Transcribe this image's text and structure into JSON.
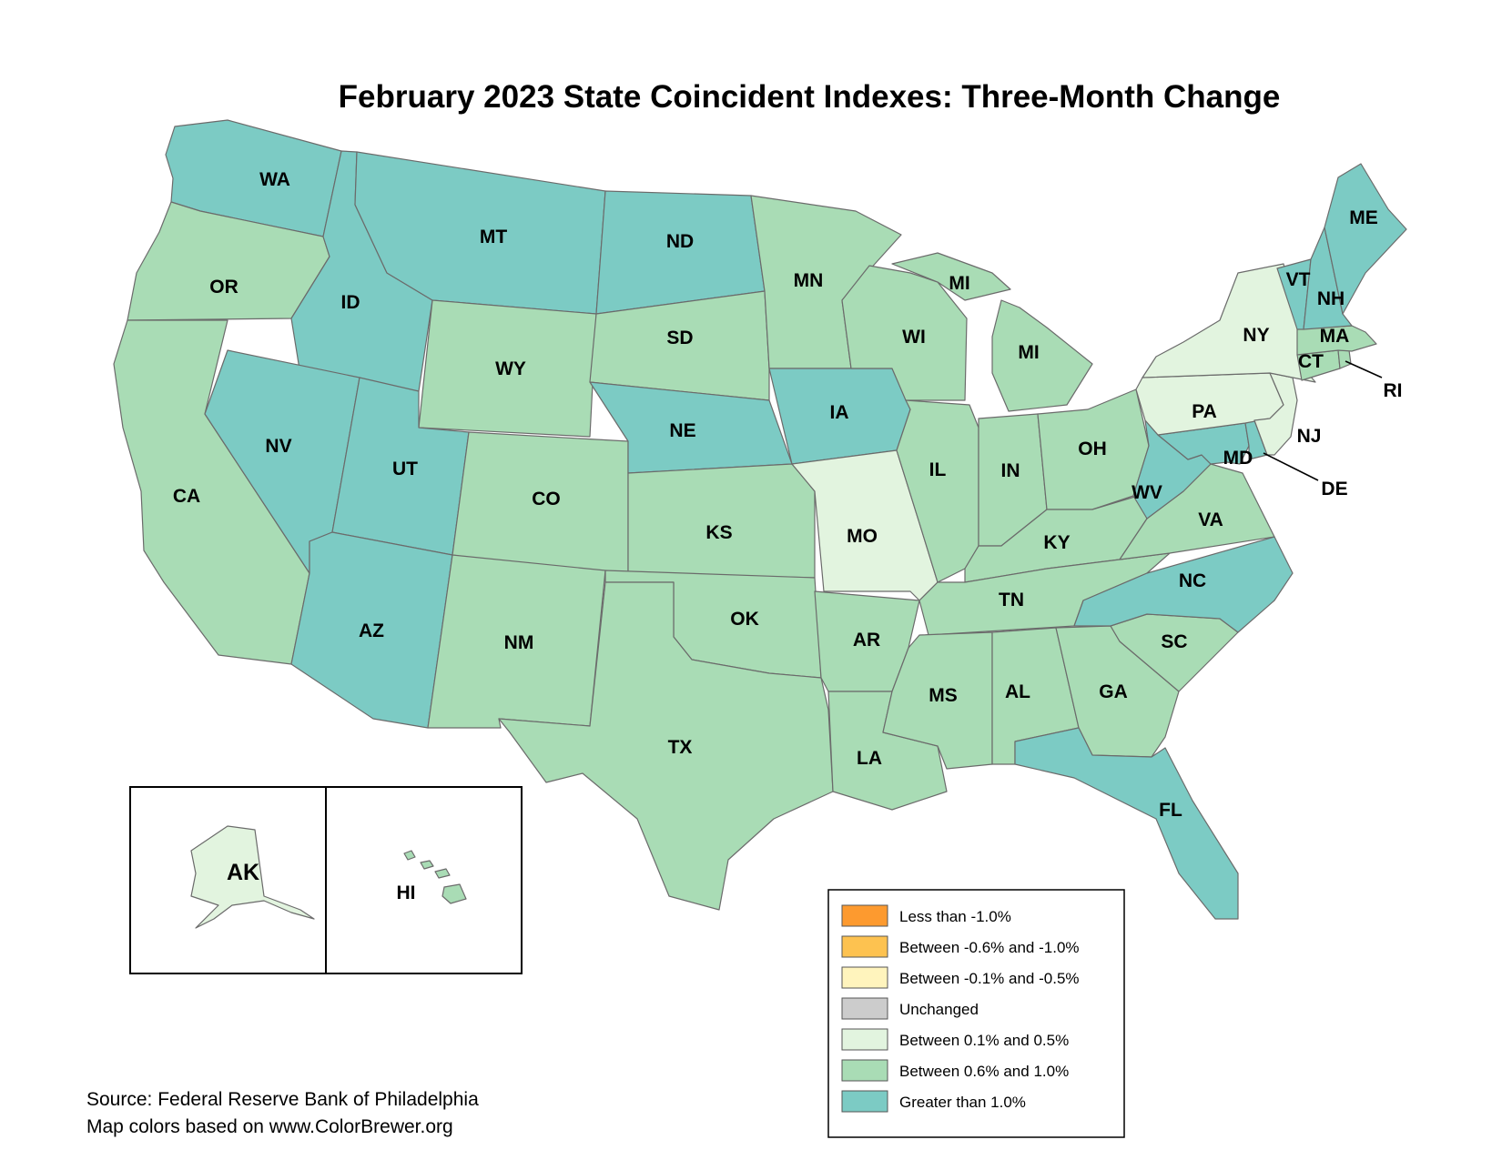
{
  "title": "February 2023 State Coincident Indexes: Three-Month Change",
  "legend": [
    {
      "label": "Less than -1.0%",
      "color": "#fd9a2f"
    },
    {
      "label": "Between -0.6% and -1.0%",
      "color": "#fdc250"
    },
    {
      "label": "Between -0.1% and -0.5%",
      "color": "#fff4bd"
    },
    {
      "label": "Unchanged",
      "color": "#cccccc"
    },
    {
      "label": "Between 0.1% and 0.5%",
      "color": "#e2f4df"
    },
    {
      "label": "Between 0.6% and 1.0%",
      "color": "#a9dcb5"
    },
    {
      "label": "Greater than 1.0%",
      "color": "#7ccbc4"
    }
  ],
  "source_lines": [
    "Source: Federal Reserve Bank of Philadelphia",
    "Map colors based on www.ColorBrewer.org"
  ],
  "states": [
    {
      "abbr": "WA",
      "category": "Greater than 1.0%"
    },
    {
      "abbr": "OR",
      "category": "Between 0.6% and 1.0%"
    },
    {
      "abbr": "CA",
      "category": "Between 0.6% and 1.0%"
    },
    {
      "abbr": "ID",
      "category": "Greater than 1.0%"
    },
    {
      "abbr": "NV",
      "category": "Greater than 1.0%"
    },
    {
      "abbr": "MT",
      "category": "Greater than 1.0%"
    },
    {
      "abbr": "WY",
      "category": "Between 0.6% and 1.0%"
    },
    {
      "abbr": "UT",
      "category": "Greater than 1.0%"
    },
    {
      "abbr": "AZ",
      "category": "Greater than 1.0%"
    },
    {
      "abbr": "CO",
      "category": "Between 0.6% and 1.0%"
    },
    {
      "abbr": "NM",
      "category": "Between 0.6% and 1.0%"
    },
    {
      "abbr": "ND",
      "category": "Greater than 1.0%"
    },
    {
      "abbr": "SD",
      "category": "Between 0.6% and 1.0%"
    },
    {
      "abbr": "NE",
      "category": "Greater than 1.0%"
    },
    {
      "abbr": "KS",
      "category": "Between 0.6% and 1.0%"
    },
    {
      "abbr": "OK",
      "category": "Between 0.6% and 1.0%"
    },
    {
      "abbr": "TX",
      "category": "Between 0.6% and 1.0%"
    },
    {
      "abbr": "MN",
      "category": "Between 0.6% and 1.0%"
    },
    {
      "abbr": "IA",
      "category": "Greater than 1.0%"
    },
    {
      "abbr": "MO",
      "category": "Between 0.1% and 0.5%"
    },
    {
      "abbr": "AR",
      "category": "Between 0.6% and 1.0%"
    },
    {
      "abbr": "LA",
      "category": "Between 0.6% and 1.0%"
    },
    {
      "abbr": "WI",
      "category": "Between 0.6% and 1.0%"
    },
    {
      "abbr": "MI",
      "category": "Between 0.6% and 1.0%"
    },
    {
      "abbr": "IL",
      "category": "Between 0.6% and 1.0%"
    },
    {
      "abbr": "IN",
      "category": "Between 0.6% and 1.0%"
    },
    {
      "abbr": "OH",
      "category": "Between 0.6% and 1.0%"
    },
    {
      "abbr": "KY",
      "category": "Between 0.6% and 1.0%"
    },
    {
      "abbr": "TN",
      "category": "Between 0.6% and 1.0%"
    },
    {
      "abbr": "MS",
      "category": "Between 0.6% and 1.0%"
    },
    {
      "abbr": "AL",
      "category": "Between 0.6% and 1.0%"
    },
    {
      "abbr": "GA",
      "category": "Between 0.6% and 1.0%"
    },
    {
      "abbr": "FL",
      "category": "Greater than 1.0%"
    },
    {
      "abbr": "SC",
      "category": "Between 0.6% and 1.0%"
    },
    {
      "abbr": "NC",
      "category": "Greater than 1.0%"
    },
    {
      "abbr": "VA",
      "category": "Between 0.6% and 1.0%"
    },
    {
      "abbr": "WV",
      "category": "Greater than 1.0%"
    },
    {
      "abbr": "MD",
      "category": "Greater than 1.0%"
    },
    {
      "abbr": "DE",
      "category": "Greater than 1.0%"
    },
    {
      "abbr": "PA",
      "category": "Between 0.1% and 0.5%"
    },
    {
      "abbr": "NJ",
      "category": "Between 0.1% and 0.5%"
    },
    {
      "abbr": "NY",
      "category": "Between 0.1% and 0.5%"
    },
    {
      "abbr": "CT",
      "category": "Between 0.6% and 1.0%"
    },
    {
      "abbr": "RI",
      "category": "Between 0.6% and 1.0%"
    },
    {
      "abbr": "MA",
      "category": "Between 0.6% and 1.0%"
    },
    {
      "abbr": "VT",
      "category": "Greater than 1.0%"
    },
    {
      "abbr": "NH",
      "category": "Greater than 1.0%"
    },
    {
      "abbr": "ME",
      "category": "Greater than 1.0%"
    },
    {
      "abbr": "AK",
      "category": "Between 0.1% and 0.5%"
    },
    {
      "abbr": "HI",
      "category": "Between 0.6% and 1.0%"
    }
  ]
}
